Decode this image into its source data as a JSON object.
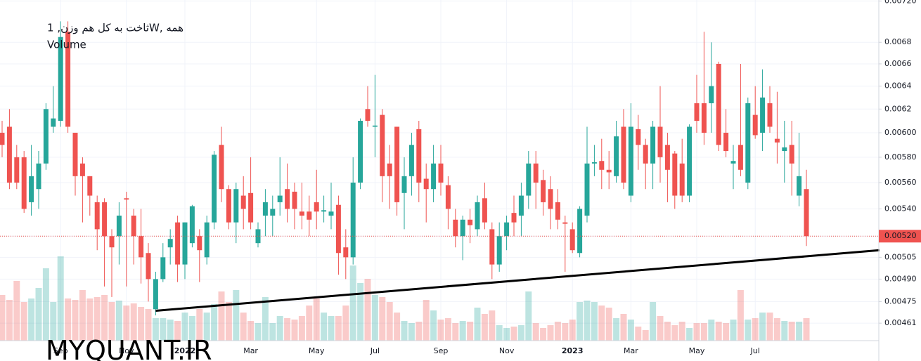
{
  "chart_data": {
    "type": "candlestick",
    "legend_title": "ثاخت به کل هم وزن, 1W, همه",
    "volume_label": "Volume",
    "watermark": "MYQUANT.IR",
    "log_scale": true,
    "grid": true,
    "up_color": "#26a69a",
    "down_color": "#ef5350",
    "ylim": [
      0.0045,
      0.00721
    ],
    "yticks": [
      0.00461,
      0.00475,
      {
        "value": 0.0049,
        "label": "0.00490"
      },
      0.00505,
      {
        "value": 0.0052,
        "label": "0.00520"
      },
      {
        "value": 0.0054,
        "label": "0.00540"
      },
      {
        "value": 0.0056,
        "label": "0.00560"
      },
      {
        "value": 0.0058,
        "label": "0.00580"
      },
      {
        "value": 0.006,
        "label": "0.00600"
      },
      0.0062,
      0.0064,
      0.0066,
      0.0068,
      {
        "value": 0.0072,
        "label": "0.00720"
      }
    ],
    "last_price": {
      "value": 0.0052,
      "label": "0.00520"
    },
    "trendline": {
      "from": [
        21,
        0.00469
      ],
      "to": [
        120,
        0.0051
      ]
    },
    "categories": [
      null,
      null,
      null,
      null,
      null,
      null,
      null,
      null,
      "Sep",
      null,
      null,
      null,
      null,
      null,
      null,
      null,
      null,
      "Nov",
      null,
      null,
      null,
      null,
      null,
      null,
      null,
      "2022",
      null,
      null,
      null,
      null,
      null,
      null,
      null,
      null,
      "Mar",
      null,
      null,
      null,
      null,
      null,
      null,
      null,
      null,
      "May",
      null,
      null,
      null,
      null,
      null,
      null,
      null,
      "Jul",
      null,
      null,
      null,
      null,
      null,
      null,
      null,
      null,
      "Sep",
      null,
      null,
      null,
      null,
      null,
      null,
      null,
      null,
      "Nov",
      null,
      null,
      null,
      null,
      null,
      null,
      null,
      null,
      "2023",
      null,
      null,
      null,
      null,
      null,
      null,
      null,
      "Mar",
      null,
      null,
      null,
      null,
      null,
      null,
      null,
      null,
      "May",
      null,
      null,
      null,
      null,
      null,
      null,
      null,
      "Jul",
      null,
      null,
      null,
      null,
      null,
      null,
      null
    ],
    "open": [
      0.006,
      0.00605,
      0.0058,
      0.0058,
      0.00545,
      0.00555,
      0.00575,
      0.00605,
      0.0061,
      0.0069,
      0.006,
      0.00575,
      0.00565,
      0.00545,
      0.00545,
      0.0052,
      0.0052,
      0.00548,
      0.00535,
      0.0052,
      0.00508,
      0.0047,
      0.0049,
      0.00512,
      0.0053,
      0.005,
      0.00515,
      0.0052,
      0.00505,
      0.0053,
      0.0059,
      0.00555,
      0.0053,
      0.0055,
      0.00552,
      0.00515,
      0.00535,
      0.00535,
      0.00545,
      0.00555,
      0.00553,
      0.00538,
      0.00538,
      0.00545,
      0.00538,
      0.00535,
      0.00543,
      0.00512,
      0.00505,
      0.0056,
      0.0062,
      0.00605,
      0.00615,
      0.00575,
      0.00605,
      0.00552,
      0.00565,
      0.00603,
      0.00563,
      0.00555,
      0.00575,
      0.00558,
      0.00532,
      0.0052,
      0.00532,
      0.00525,
      0.00548,
      0.00525,
      0.005,
      0.0052,
      0.00537,
      0.00535,
      0.0055,
      0.00575,
      0.00562,
      0.00555,
      0.00545,
      0.0053,
      0.00525,
      0.00508,
      0.00535,
      0.00575,
      0.00577,
      0.0057,
      0.00565,
      0.00605,
      0.0055,
      0.00603,
      0.0059,
      0.00575,
      0.00605,
      0.0059,
      0.00583,
      0.00575,
      0.0055,
      0.00625,
      0.00625,
      0.00625,
      0.0066,
      0.006,
      0.00575,
      0.0059,
      0.0056,
      0.00615,
      0.006,
      0.00625,
      0.00595,
      0.00585,
      0.0059,
      0.0055,
      0.00555
    ],
    "close": [
      0.0059,
      0.0056,
      0.0056,
      0.0054,
      0.00565,
      0.00575,
      0.0062,
      0.00612,
      0.00685,
      0.00605,
      0.00565,
      0.00565,
      0.0055,
      0.00525,
      0.0052,
      0.00512,
      0.00535,
      0.00547,
      0.0052,
      0.00505,
      0.0049,
      0.0049,
      0.00505,
      0.00518,
      0.005,
      0.0053,
      0.00542,
      0.0051,
      0.0053,
      0.00582,
      0.00555,
      0.0053,
      0.00555,
      0.0054,
      0.0053,
      0.00525,
      0.00545,
      0.0054,
      0.0055,
      0.0054,
      0.0054,
      0.00535,
      0.00532,
      0.00538,
      0.00539,
      0.00538,
      0.00508,
      0.00505,
      0.0056,
      0.0061,
      0.0061,
      0.00606,
      0.00565,
      0.00565,
      0.00545,
      0.00565,
      0.0059,
      0.0056,
      0.00555,
      0.00575,
      0.0056,
      0.0054,
      0.0052,
      0.00532,
      0.00528,
      0.00545,
      0.0053,
      0.005,
      0.0052,
      0.0053,
      0.0053,
      0.0055,
      0.00575,
      0.0056,
      0.00545,
      0.0054,
      0.00532,
      0.00529,
      0.0051,
      0.0054,
      0.00575,
      0.00576,
      0.0057,
      0.00568,
      0.00597,
      0.0056,
      0.00605,
      0.0059,
      0.00575,
      0.00605,
      0.0058,
      0.0057,
      0.0055,
      0.0055,
      0.00605,
      0.0061,
      0.006,
      0.0064,
      0.0059,
      0.00585,
      0.00577,
      0.0057,
      0.00625,
      0.00598,
      0.0063,
      0.00605,
      0.00592,
      0.00588,
      0.00575,
      0.00565,
      0.0052
    ],
    "high": [
      0.0061,
      0.0062,
      0.0059,
      0.00585,
      0.0059,
      0.00585,
      0.00625,
      0.0064,
      0.007,
      0.007,
      0.006,
      0.0058,
      0.00565,
      0.0055,
      0.00548,
      0.00525,
      0.00545,
      0.00553,
      0.0054,
      0.0054,
      0.00515,
      0.00495,
      0.00515,
      0.00525,
      0.00535,
      0.0053,
      0.00543,
      0.00525,
      0.00535,
      0.00585,
      0.00605,
      0.00558,
      0.0056,
      0.00565,
      0.0058,
      0.0053,
      0.00555,
      0.0055,
      0.0058,
      0.00575,
      0.0056,
      0.0056,
      0.0055,
      0.0057,
      0.0055,
      0.0056,
      0.0055,
      0.00525,
      0.0058,
      0.00612,
      0.0064,
      0.0065,
      0.0062,
      0.0059,
      0.00605,
      0.0058,
      0.006,
      0.0061,
      0.00575,
      0.0059,
      0.0059,
      0.00565,
      0.0054,
      0.00535,
      0.0054,
      0.0055,
      0.0056,
      0.0053,
      0.0053,
      0.00535,
      0.0055,
      0.0056,
      0.00585,
      0.00585,
      0.0057,
      0.00565,
      0.00555,
      0.00535,
      0.0053,
      0.00542,
      0.00605,
      0.0059,
      0.00595,
      0.00585,
      0.0061,
      0.0062,
      0.00625,
      0.00615,
      0.00595,
      0.0061,
      0.0064,
      0.006,
      0.00585,
      0.00595,
      0.00607,
      0.0065,
      0.0069,
      0.0068,
      0.00662,
      0.0062,
      0.0059,
      0.0066,
      0.0063,
      0.0064,
      0.00655,
      0.0064,
      0.00635,
      0.0061,
      0.0061,
      0.006,
      0.0057
    ],
    "low": [
      0.0058,
      0.00555,
      0.00555,
      0.00537,
      0.00535,
      0.0054,
      0.0057,
      0.006,
      0.00605,
      0.006,
      0.0055,
      0.0053,
      0.00535,
      0.0051,
      0.00485,
      0.00478,
      0.005,
      0.00485,
      0.005,
      0.00487,
      0.00475,
      0.00466,
      0.00488,
      0.005,
      0.00488,
      0.0049,
      0.00512,
      0.00488,
      0.005,
      0.00525,
      0.00545,
      0.00525,
      0.00515,
      0.00525,
      0.00525,
      0.00512,
      0.0052,
      0.0052,
      0.00535,
      0.0053,
      0.00525,
      0.00525,
      0.0052,
      0.00525,
      0.0053,
      0.00525,
      0.00493,
      0.0049,
      0.005,
      0.00555,
      0.00605,
      0.0058,
      0.00545,
      0.0054,
      0.00535,
      0.00525,
      0.0055,
      0.00545,
      0.0053,
      0.00545,
      0.0055,
      0.00525,
      0.00512,
      0.00503,
      0.00515,
      0.0052,
      0.00525,
      0.0049,
      0.00495,
      0.0051,
      0.0052,
      0.0052,
      0.0054,
      0.0054,
      0.00535,
      0.00525,
      0.00525,
      0.00495,
      0.00508,
      0.00505,
      0.0053,
      0.00565,
      0.00555,
      0.00555,
      0.0056,
      0.00555,
      0.00545,
      0.0057,
      0.00555,
      0.00555,
      0.0056,
      0.00545,
      0.0054,
      0.00545,
      0.00545,
      0.006,
      0.0059,
      0.006,
      0.00585,
      0.0058,
      0.00555,
      0.00565,
      0.00555,
      0.00595,
      0.00585,
      0.006,
      0.00575,
      0.0056,
      0.0055,
      0.00542,
      0.00513
    ],
    "volume": [
      65,
      58,
      85,
      55,
      60,
      75,
      103,
      55,
      120,
      60,
      58,
      72,
      60,
      62,
      65,
      55,
      57,
      50,
      53,
      48,
      45,
      32,
      32,
      30,
      28,
      40,
      35,
      45,
      40,
      52,
      70,
      55,
      72,
      40,
      28,
      25,
      62,
      25,
      35,
      32,
      30,
      35,
      50,
      60,
      40,
      35,
      35,
      50,
      107,
      82,
      88,
      65,
      62,
      55,
      40,
      28,
      25,
      27,
      58,
      43,
      30,
      32,
      25,
      28,
      27,
      47,
      38,
      43,
      22,
      18,
      20,
      22,
      70,
      25,
      18,
      22,
      27,
      25,
      30,
      55,
      57,
      55,
      50,
      47,
      32,
      38,
      30,
      20,
      15,
      55,
      35,
      27,
      22,
      27,
      18,
      25,
      25,
      30,
      27,
      25,
      30,
      72,
      30,
      32,
      40,
      40,
      32,
      28,
      27,
      27,
      32
    ]
  }
}
